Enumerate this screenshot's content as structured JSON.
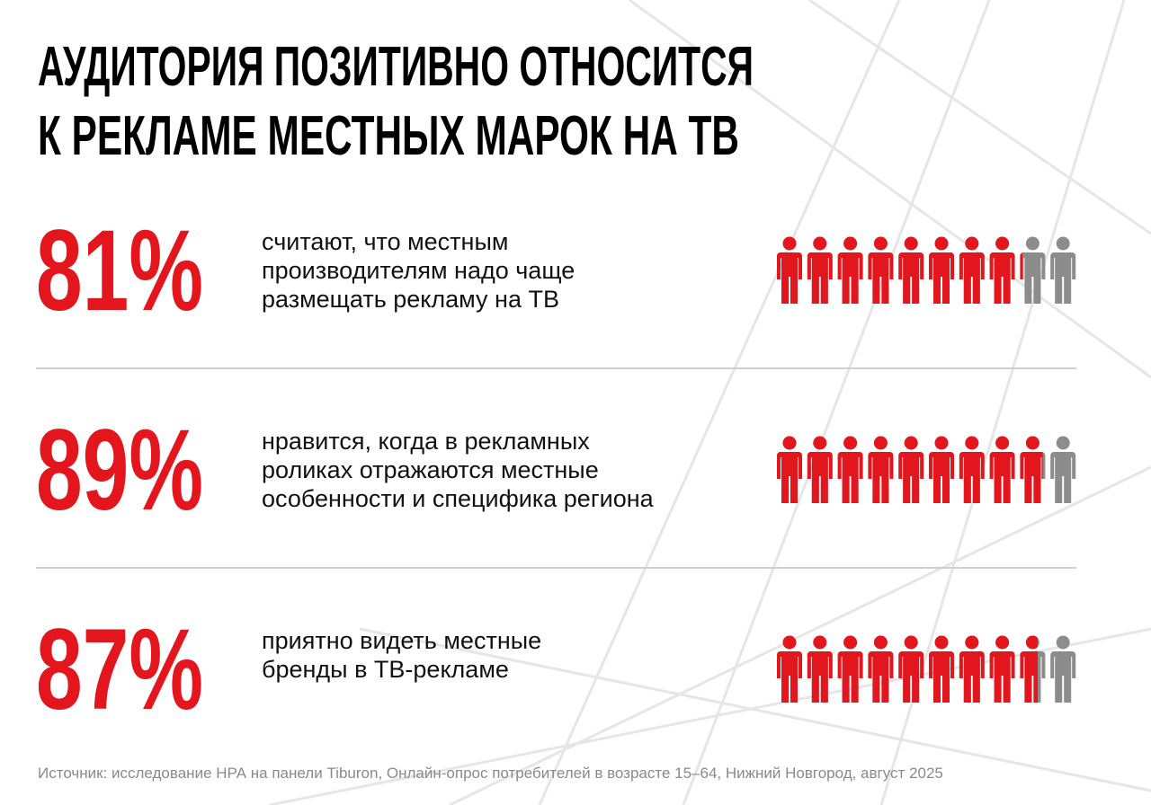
{
  "header": {
    "title": [
      "АУДИТОРИЯ ПОЗИТИВНО ОТНОСИТСЯ",
      "К РЕКЛАМЕ МЕСТНЫХ МАРОК НА ТВ"
    ]
  },
  "items": [
    {
      "value": 81,
      "value_label": "81%",
      "text": [
        "считают, что местным",
        "производителям надо чаще",
        "размещать рекламу на ТВ"
      ]
    },
    {
      "value": 89,
      "value_label": "89%",
      "text": [
        "нравится, когда в рекламных",
        "роликах отражаются местные",
        "особенности и специфика региона"
      ]
    },
    {
      "value": 87,
      "value_label": "87%",
      "text": [
        "приятно видеть местные",
        "бренды в ТВ-рекламе"
      ]
    }
  ],
  "icon_colors": {
    "filled": "#e3161e",
    "empty": "#8c8c8c"
  },
  "source": "Источник: исследование НРА на панели Tiburon, Онлайн-опрос потребителей в возрасте 15–64, Нижний Новгород, август 2025"
}
